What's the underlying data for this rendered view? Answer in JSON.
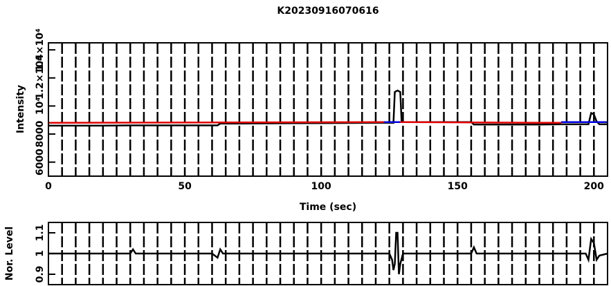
{
  "chart_data": [
    {
      "type": "line",
      "title": "K20230916070616",
      "xlabel": "Time (sec)",
      "ylabel": "Intensity",
      "xlim": [
        0,
        205
      ],
      "xticks": [
        0,
        50,
        100,
        150,
        200
      ],
      "ylim": [
        5000,
        14500
      ],
      "yticks": [
        6000,
        8000,
        {
          "value": 10000,
          "label": "10⁴"
        },
        {
          "value": 12000,
          "label": "1.2×10⁴"
        },
        {
          "value": 14000,
          "label": "1.4×10⁴"
        }
      ],
      "grid": true,
      "minor_grid_step": 5,
      "series": [
        {
          "color": "#000000",
          "x": [
            0,
            10,
            20,
            30,
            40,
            50,
            60,
            62,
            63,
            70,
            80,
            90,
            100,
            110,
            120,
            126,
            126.5,
            127,
            128,
            129,
            129.5,
            130,
            140,
            150,
            155,
            156,
            160,
            170,
            180,
            188,
            190,
            195,
            198,
            199,
            200,
            201,
            202,
            205
          ],
          "values": [
            8600,
            8600,
            8600,
            8620,
            8620,
            8620,
            8620,
            8620,
            8750,
            8750,
            8760,
            8770,
            8780,
            8790,
            8800,
            8800,
            8800,
            11000,
            11100,
            11000,
            8850,
            8850,
            8850,
            8850,
            8850,
            8680,
            8680,
            8680,
            8680,
            8700,
            8700,
            8700,
            8700,
            9500,
            9400,
            8900,
            8700,
            8700
          ]
        },
        {
          "color": "#e00000",
          "x": [
            0,
            123
          ],
          "values": [
            8800,
            8850
          ]
        },
        {
          "color": "#0000e0",
          "x": [
            123,
            129
          ],
          "values": [
            8850,
            8850
          ]
        },
        {
          "color": "#e00000",
          "x": [
            129,
            188
          ],
          "values": [
            8850,
            8800
          ]
        },
        {
          "color": "#0000e0",
          "x": [
            188,
            205
          ],
          "values": [
            8850,
            8850
          ]
        }
      ]
    },
    {
      "type": "line",
      "ylabel": "Nor. Level",
      "xlim": [
        0,
        205
      ],
      "ylim": [
        0.85,
        1.15
      ],
      "yticks": [
        0.9,
        1,
        1.1
      ],
      "grid": true,
      "minor_grid_step": 5,
      "series": [
        {
          "color": "#000000",
          "x": [
            0,
            30,
            31,
            32,
            60,
            62,
            63,
            64,
            90,
            120,
            125,
            126,
            126.5,
            127,
            127.5,
            128,
            128.5,
            129,
            130,
            150,
            155,
            156,
            157,
            180,
            197,
            198,
            199,
            200,
            201,
            202,
            205
          ],
          "values": [
            1,
            1,
            1.02,
            1,
            1,
            0.98,
            1.02,
            1,
            1,
            1,
            1,
            0.97,
            0.92,
            0.95,
            1.1,
            1.1,
            0.9,
            0.95,
            1,
            1,
            1,
            1.03,
            1,
            1,
            1,
            0.97,
            1.07,
            1.05,
            0.97,
            0.99,
            1
          ]
        }
      ]
    }
  ]
}
